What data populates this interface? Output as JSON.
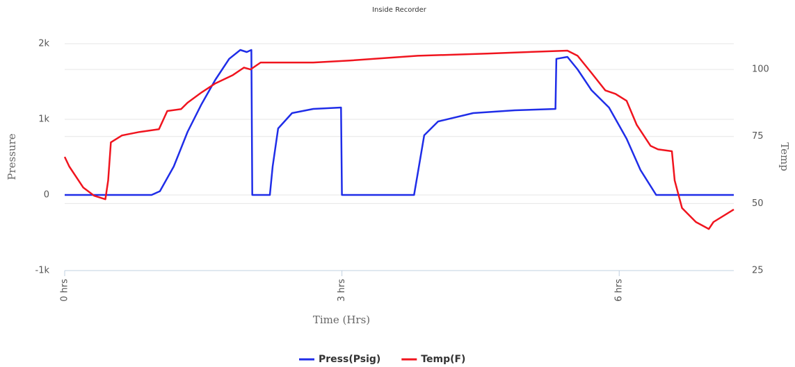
{
  "chart_data": {
    "type": "line",
    "title": "Inside Recorder",
    "x_label": "Time (Hrs)",
    "y_label": "Pressure",
    "y2_label": "Temp",
    "xlim": [
      0,
      7.24
    ],
    "xticks": [
      {
        "value": 0,
        "label": "0 hrs"
      },
      {
        "value": 3,
        "label": "3 hrs"
      },
      {
        "value": 6,
        "label": "6 hrs"
      }
    ],
    "ylim": [
      -1000,
      2000
    ],
    "yticks": [
      {
        "value": -1000,
        "label": "-1k"
      },
      {
        "value": 0,
        "label": "0"
      },
      {
        "value": 1000,
        "label": "1k"
      },
      {
        "value": 2000,
        "label": "2k"
      }
    ],
    "y2lim": [
      25,
      109.6
    ],
    "y2ticks": [
      25,
      50,
      75,
      100
    ],
    "grid": true,
    "legend": "bottom",
    "series": [
      {
        "name": "Press(Psig)",
        "color": "#1f2de8",
        "x": [
          0,
          0.94,
          1.03,
          1.18,
          1.33,
          1.48,
          1.63,
          1.78,
          1.9,
          1.97,
          2.02,
          2.03,
          2.22,
          2.25,
          2.31,
          2.46,
          2.69,
          2.99,
          3.0,
          3.78,
          3.82,
          3.89,
          4.04,
          4.42,
          4.87,
          5.31,
          5.32,
          5.44,
          5.55,
          5.7,
          5.89,
          6.08,
          6.23,
          6.4,
          7.24
        ],
        "values": [
          0,
          0,
          50,
          376,
          835,
          1200,
          1523,
          1800,
          1917,
          1890,
          1917,
          0,
          0,
          376,
          880,
          1083,
          1138,
          1156,
          0,
          0,
          284,
          789,
          972,
          1083,
          1119,
          1138,
          1800,
          1826,
          1661,
          1385,
          1156,
          743,
          330,
          0,
          0
        ]
      },
      {
        "name": "Temp(F)",
        "color": "#f0141e",
        "axis": "y2",
        "x": [
          0,
          0.05,
          0.2,
          0.32,
          0.44,
          0.47,
          0.5,
          0.62,
          0.81,
          1.02,
          1.11,
          1.26,
          1.33,
          1.48,
          1.63,
          1.82,
          1.94,
          2.01,
          2.12,
          2.69,
          3.07,
          3.82,
          4.57,
          5.17,
          5.44,
          5.55,
          5.7,
          5.85,
          5.96,
          6.08,
          6.19,
          6.34,
          6.42,
          6.57,
          6.6,
          6.68,
          6.83,
          6.97,
          7.02,
          7.24
        ],
        "values": [
          67.4,
          63.8,
          56.0,
          52.9,
          51.6,
          58.6,
          72.8,
          75.4,
          76.7,
          77.7,
          84.5,
          85.2,
          87.6,
          91.4,
          94.8,
          97.9,
          100.7,
          100.0,
          102.6,
          102.6,
          103.3,
          105.1,
          105.9,
          106.7,
          107.0,
          105.1,
          98.7,
          92.2,
          90.9,
          88.3,
          79.3,
          71.5,
          70.2,
          69.5,
          58.6,
          48.3,
          43.1,
          40.5,
          43.1,
          47.8
        ]
      }
    ]
  }
}
